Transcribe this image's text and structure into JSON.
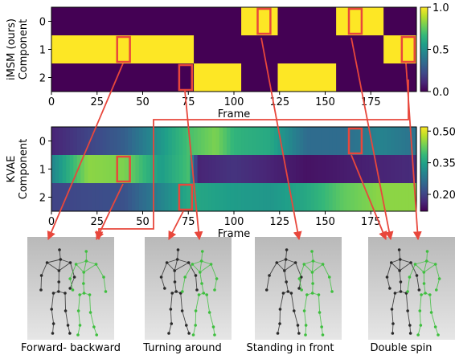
{
  "chart_data": [
    {
      "type": "heatmap",
      "ylabel_lines": [
        "iMSM (ours)",
        "Component"
      ],
      "xlabel": "Frame",
      "xlim": [
        0,
        200
      ],
      "x_ticks": [
        "0",
        "25",
        "50",
        "75",
        "100",
        "125",
        "150",
        "175"
      ],
      "y_ticks": [
        "0",
        "1",
        "2"
      ],
      "colorbar_ticks": [
        "1.0",
        "0.5",
        "0.0"
      ],
      "colorbar_range": [
        0.0,
        1.0
      ],
      "colormap": "viridis",
      "active_segments": [
        {
          "component": 1,
          "start": 0,
          "end": 78
        },
        {
          "component": 2,
          "start": 78,
          "end": 104
        },
        {
          "component": 0,
          "start": 104,
          "end": 124
        },
        {
          "component": 2,
          "start": 124,
          "end": 156
        },
        {
          "component": 0,
          "start": 156,
          "end": 182
        },
        {
          "component": 1,
          "start": 182,
          "end": 200
        }
      ]
    },
    {
      "type": "heatmap",
      "ylabel_lines": [
        "KVAE",
        "Component"
      ],
      "xlabel": "Frame",
      "xlim": [
        0,
        200
      ],
      "x_ticks": [
        "0",
        "25",
        "50",
        "75",
        "100",
        "125",
        "150",
        "175"
      ],
      "y_ticks": [
        "0",
        "1",
        "2"
      ],
      "colorbar_ticks": [
        "0.50",
        "0.35",
        "0.20"
      ],
      "colorbar_range": [
        0.12,
        0.52
      ],
      "colormap": "viridis",
      "rows": [
        {
          "component": 0,
          "frames": [
            0,
            40,
            75,
            90,
            100,
            120,
            140,
            160,
            180,
            200
          ],
          "values": [
            0.16,
            0.24,
            0.4,
            0.44,
            0.38,
            0.36,
            0.26,
            0.26,
            0.3,
            0.27
          ]
        },
        {
          "component": 1,
          "frames": [
            0,
            20,
            40,
            60,
            75,
            80,
            100,
            120,
            140,
            160,
            180,
            200
          ],
          "values": [
            0.3,
            0.45,
            0.44,
            0.34,
            0.4,
            0.16,
            0.18,
            0.16,
            0.14,
            0.15,
            0.16,
            0.17
          ]
        },
        {
          "component": 2,
          "frames": [
            0,
            40,
            75,
            100,
            120,
            140,
            160,
            180,
            200
          ],
          "values": [
            0.2,
            0.22,
            0.36,
            0.34,
            0.33,
            0.36,
            0.42,
            0.45,
            0.45
          ]
        }
      ]
    }
  ],
  "highlights": [
    {
      "chart": 0,
      "component": 1,
      "start": 36,
      "end": 43
    },
    {
      "chart": 0,
      "component": 2,
      "start": 70,
      "end": 77
    },
    {
      "chart": 0,
      "component": 0,
      "start": 113,
      "end": 120
    },
    {
      "chart": 0,
      "component": 0,
      "start": 163,
      "end": 170
    },
    {
      "chart": 0,
      "component": 1,
      "start": 192,
      "end": 199
    },
    {
      "chart": 1,
      "component": 1,
      "start": 36,
      "end": 43
    },
    {
      "chart": 1,
      "component": 2,
      "start": 70,
      "end": 77
    },
    {
      "chart": 1,
      "component": 0,
      "start": 163,
      "end": 170
    }
  ],
  "highlight_color": "#e8473c",
  "captions": [
    "Forward- backward",
    "Turning around",
    "Standing in front",
    "Double spin"
  ]
}
